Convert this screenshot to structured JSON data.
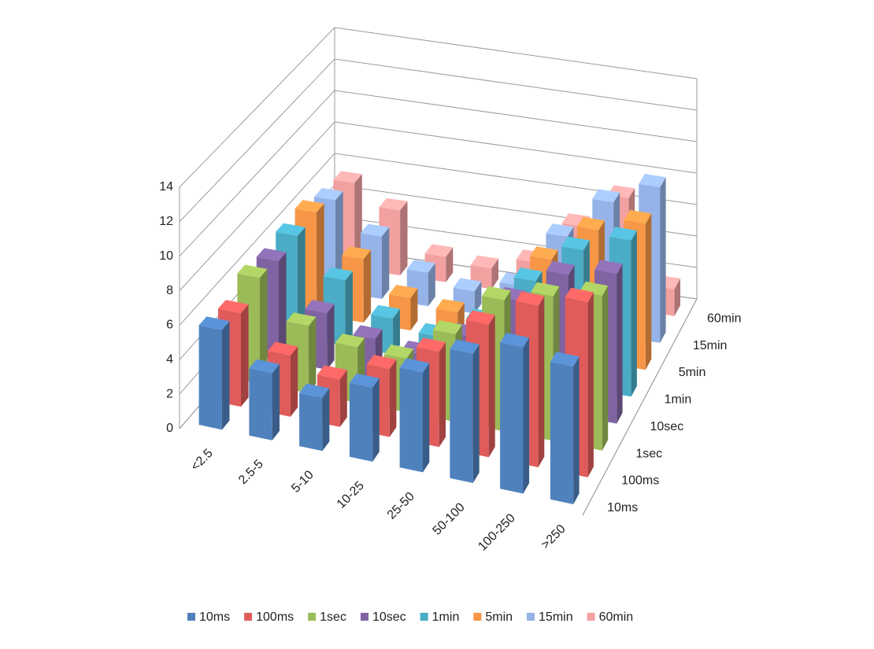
{
  "chart_data": {
    "type": "bar3d",
    "categories": [
      "<2.5",
      "2.5-5",
      "5-10",
      "10-25",
      "25-50",
      "50-100",
      "100-250",
      ">250"
    ],
    "series": [
      {
        "name": "10ms",
        "color": "#4f81bd",
        "values": [
          5.8,
          3.9,
          3.1,
          4.3,
          5.8,
          7.5,
          8.5,
          8.0
        ]
      },
      {
        "name": "100ms",
        "color": "#e05c5a",
        "values": [
          5.5,
          3.6,
          2.8,
          4.0,
          5.6,
          7.8,
          9.5,
          10.3
        ]
      },
      {
        "name": "1sec",
        "color": "#9bbb59",
        "values": [
          6.3,
          4.0,
          3.3,
          3.2,
          5.2,
          7.8,
          8.6,
          9.2
        ]
      },
      {
        "name": "10sec",
        "color": "#8064a2",
        "values": [
          6.0,
          3.4,
          2.4,
          2.0,
          3.6,
          6.3,
          8.4,
          9.0
        ]
      },
      {
        "name": "1min",
        "color": "#4bacc6",
        "values": [
          6.2,
          4.0,
          2.2,
          1.6,
          3.0,
          6.0,
          8.4,
          9.5
        ]
      },
      {
        "name": "5min",
        "color": "#f79646",
        "values": [
          6.3,
          3.9,
          2.0,
          1.6,
          2.5,
          5.8,
          8.1,
          9.0
        ]
      },
      {
        "name": "15min",
        "color": "#95b3e8",
        "values": [
          5.7,
          3.9,
          2.1,
          1.4,
          2.2,
          5.7,
          8.3,
          9.7
        ]
      },
      {
        "name": "60min",
        "color": "#f2a0a0",
        "values": [
          5.4,
          4.1,
          1.6,
          1.3,
          2.1,
          4.8,
          7.0,
          1.7
        ]
      }
    ],
    "ylim": [
      0,
      14
    ],
    "yticks": [
      0,
      2,
      4,
      6,
      8,
      10,
      12,
      14
    ],
    "grid": true,
    "legend": "bottom"
  }
}
